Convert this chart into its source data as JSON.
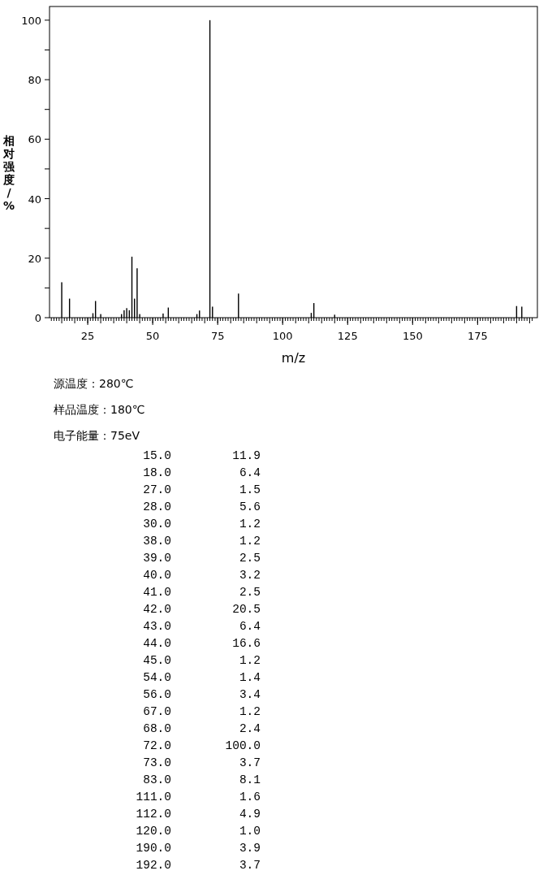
{
  "chart_data": {
    "type": "bar",
    "xlabel": "m/z",
    "ylabel": "相对强度/%",
    "x": [
      15,
      18,
      27,
      28,
      30,
      38,
      39,
      40,
      41,
      42,
      43,
      44,
      45,
      54,
      56,
      67,
      68,
      72,
      73,
      83,
      111,
      112,
      120,
      190,
      192
    ],
    "series": [
      {
        "color": "#000000",
        "values": [
          11.9,
          6.4,
          1.5,
          5.6,
          1.2,
          1.2,
          2.5,
          3.2,
          2.5,
          20.5,
          6.4,
          16.6,
          1.2,
          1.4,
          3.4,
          1.2,
          2.4,
          100.0,
          3.7,
          8.1,
          1.6,
          4.9,
          1.0,
          3.9,
          3.7
        ]
      }
    ],
    "xlim": [
      10.3,
      198
    ],
    "xticks": [
      25,
      50,
      75,
      100,
      125,
      150,
      175
    ],
    "ylim": [
      0,
      104.6
    ],
    "yticks": [
      0,
      {
        "value": 10,
        "label": null
      },
      20,
      {
        "value": 30,
        "label": null
      },
      40,
      {
        "value": 50,
        "label": null
      },
      60,
      {
        "value": 70,
        "label": null
      },
      80,
      {
        "value": 90,
        "label": null
      },
      100
    ],
    "annotations": [
      "源温度：280℃",
      "样品温度：180℃",
      "电子能量：75eV",
      "15.0",
      "11.9",
      "18.0",
      "6.4",
      "27.0",
      "1.5",
      "28.0",
      "5.6",
      "30.0",
      "1.2",
      "38.0",
      "1.2",
      "39.0",
      "2.5",
      "40.0",
      "3.2",
      "41.0",
      "2.5",
      "42.0",
      "20.5",
      "43.0",
      "6.4",
      "44.0",
      "16.6",
      "45.0",
      "1.2",
      "54.0",
      "1.4",
      "56.0",
      "3.4",
      "67.0",
      "1.2",
      "68.0",
      "2.4",
      "72.0",
      "100.0",
      "73.0",
      "3.7",
      "83.0",
      "8.1",
      "111.0",
      "1.6",
      "112.0",
      "4.9",
      "120.0",
      "1.0",
      "190.0",
      "3.9",
      "192.0",
      "3.7"
    ]
  }
}
